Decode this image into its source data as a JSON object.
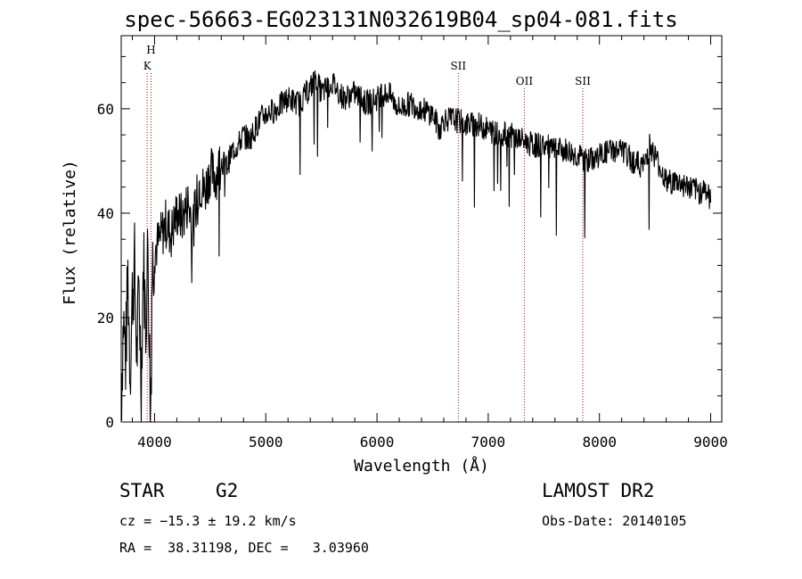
{
  "title": "spec-56663-EG023131N032619B04_sp04-081.fits",
  "info": {
    "class_label": "STAR",
    "subclass_label": "G2",
    "survey": "LAMOST DR2",
    "cz": "cz = −15.3 ± 19.2 km/s",
    "obs_date": "Obs-Date: 20140105",
    "radec": "RA =  38.31198, DEC =   3.03960"
  },
  "chart_data": {
    "type": "line",
    "title": "spec-56663-EG023131N032619B04_sp04-081.fits",
    "xlabel": "Wavelength (Å)",
    "ylabel": "Flux (relative)",
    "xlim": [
      3700,
      9100
    ],
    "ylim": [
      0,
      74
    ],
    "x_ticks": [
      4000,
      5000,
      6000,
      7000,
      8000,
      9000
    ],
    "y_ticks": [
      0,
      20,
      40,
      60
    ],
    "x_minor_step": 200,
    "y_minor_step": 5,
    "grid": false,
    "line_color": "#000000",
    "marker_color": "#c00000",
    "series": [
      {
        "x": [
          3700,
          3720,
          3740,
          3760,
          3780,
          3800,
          3820,
          3840,
          3860,
          3880,
          3900,
          3920,
          3940,
          3960,
          3980,
          4000,
          4050,
          4100,
          4150,
          4200,
          4250,
          4300,
          4350,
          4400,
          4450,
          4500,
          4550,
          4600,
          4650,
          4700,
          4750,
          4800,
          4850,
          4900,
          4950,
          5000,
          5100,
          5200,
          5300,
          5400,
          5450,
          5500,
          5600,
          5700,
          5800,
          5900,
          6000,
          6100,
          6200,
          6300,
          6400,
          6500,
          6560,
          6600,
          6700,
          6800,
          6900,
          7000,
          7100,
          7200,
          7300,
          7400,
          7500,
          7600,
          7700,
          7800,
          7900,
          8000,
          8100,
          8200,
          8300,
          8400,
          8450,
          8500,
          8600,
          8700,
          8800,
          8900,
          8950,
          9000
        ],
        "y": [
          4,
          20,
          12,
          28,
          10,
          24,
          30,
          12,
          26,
          8,
          32,
          18,
          34,
          6,
          30,
          33,
          35,
          38,
          36,
          40,
          39,
          42,
          38,
          46,
          44,
          48,
          47,
          50,
          49,
          52,
          53,
          55,
          54,
          56,
          58,
          59,
          60,
          62,
          61,
          64,
          66,
          63,
          65,
          62,
          63,
          61,
          62,
          63,
          60,
          61,
          60,
          59,
          56,
          58,
          58,
          57,
          57,
          56,
          55,
          55,
          54,
          53,
          53,
          52,
          52,
          51,
          50,
          51,
          52,
          52,
          50,
          49,
          53,
          51,
          46,
          46,
          45,
          44,
          45,
          42
        ]
      }
    ],
    "markers": [
      {
        "label": "H",
        "x": 3968
      },
      {
        "label": "K",
        "x": 3934
      },
      {
        "label": "SII",
        "x": 6731
      },
      {
        "label": "OII",
        "x": 7325
      },
      {
        "label": "SII",
        "x": 7850
      }
    ]
  }
}
